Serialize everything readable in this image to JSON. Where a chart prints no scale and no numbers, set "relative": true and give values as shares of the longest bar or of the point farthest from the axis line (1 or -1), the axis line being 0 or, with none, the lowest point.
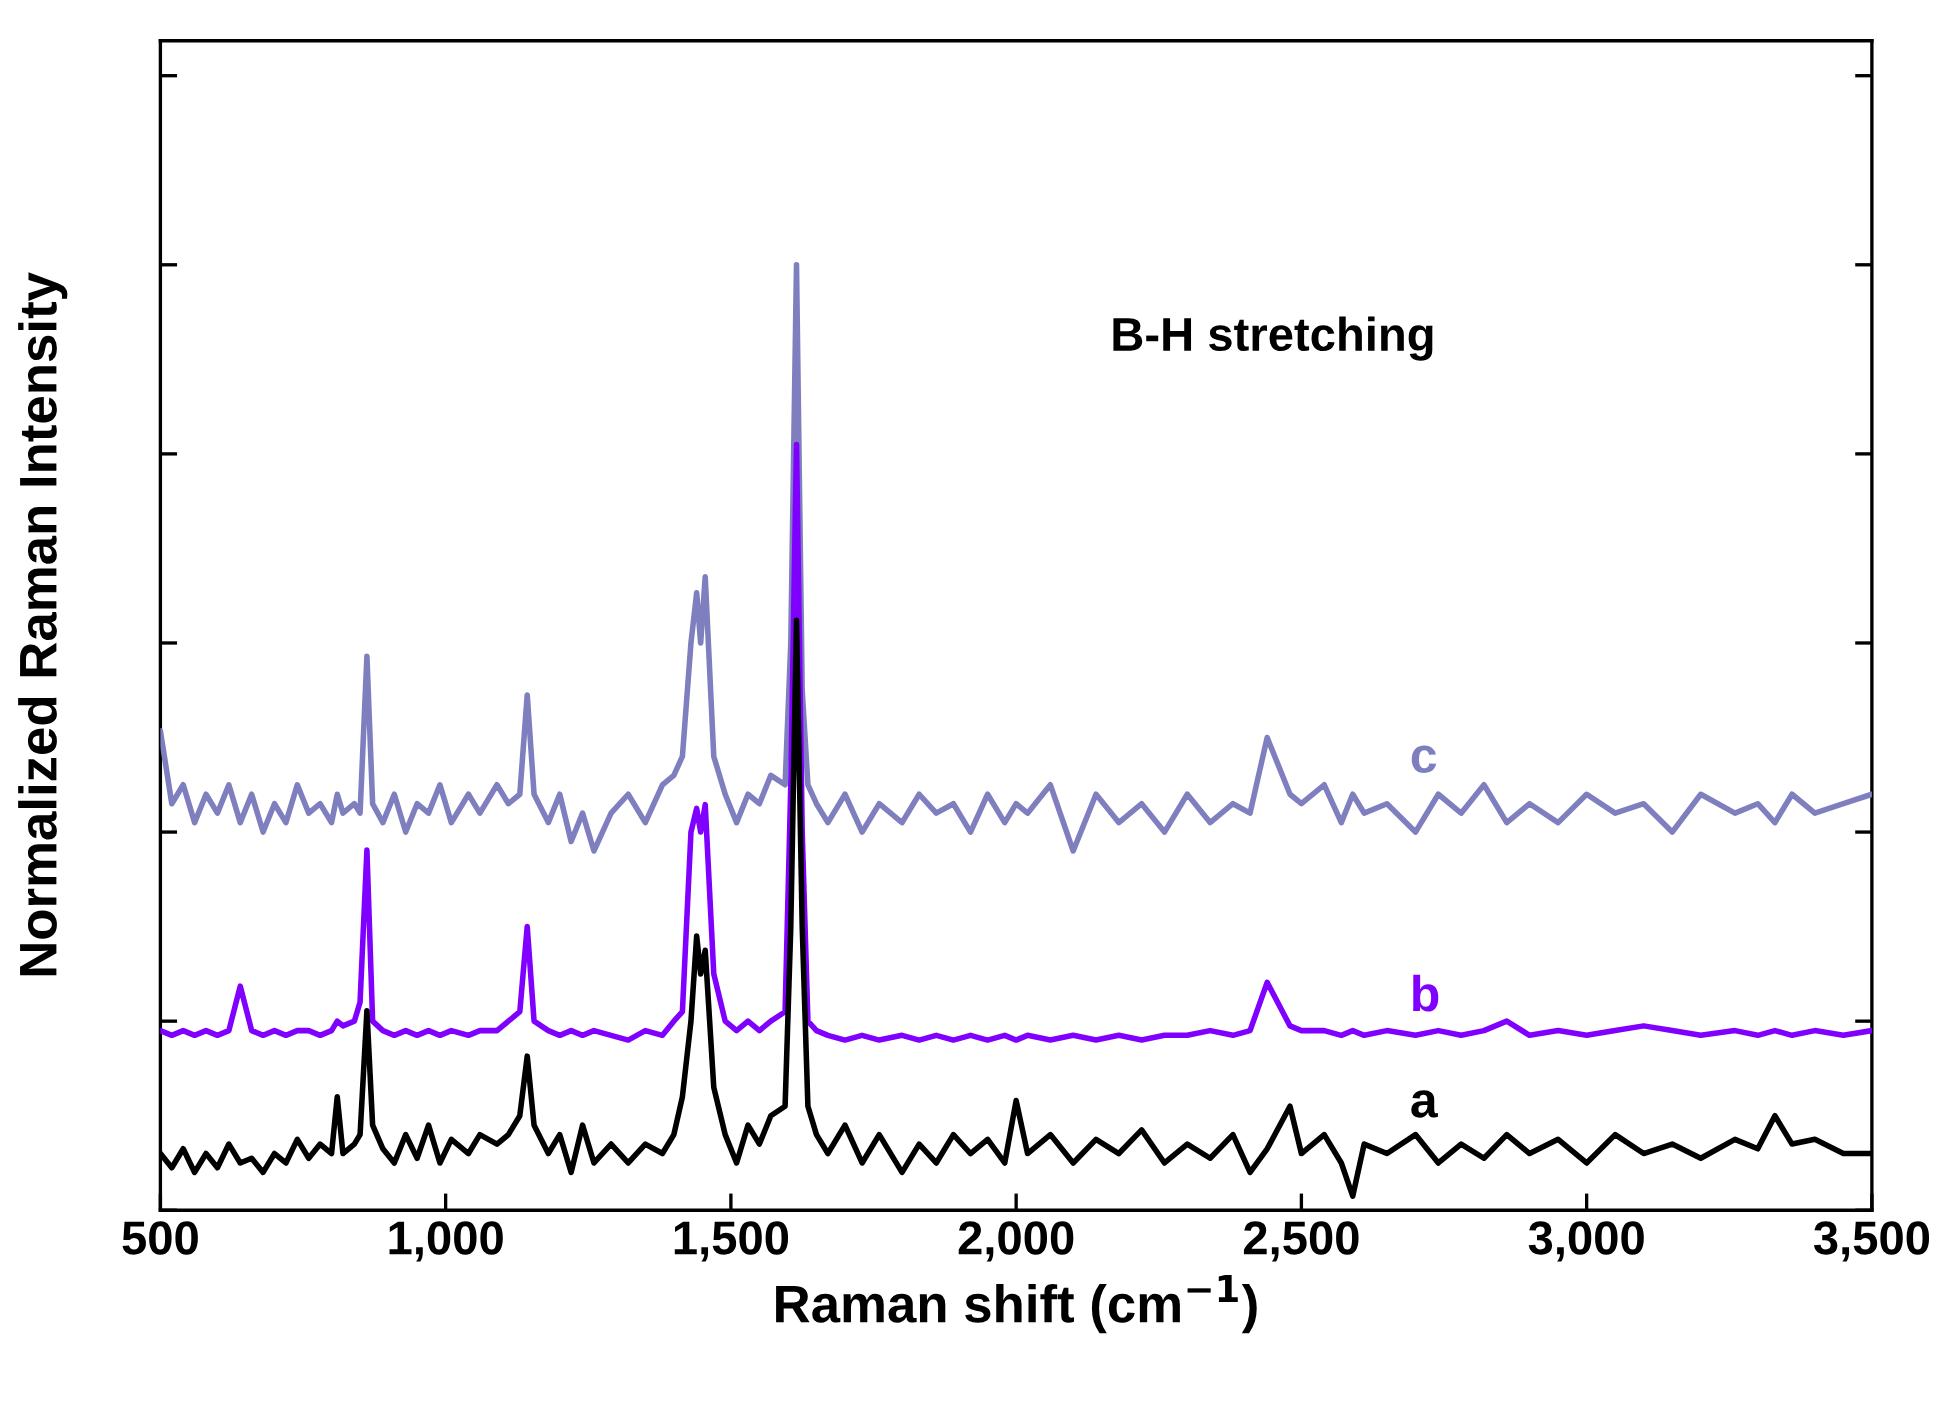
{
  "chart_data": {
    "type": "line",
    "relative": true,
    "xlabel": "Raman shift (cm$^{−1}$)",
    "ylabel": "Normalized Raman Intensity",
    "annotations": [
      "B-H stretching"
    ],
    "xlim": [
      500,
      3500
    ],
    "xticks": [
      500,
      {
        "value": 1000,
        "label": "1,000"
      },
      {
        "value": 1500,
        "label": "1,500"
      },
      {
        "value": 2000,
        "label": "2,000"
      },
      {
        "value": 2500,
        "label": "2,500"
      },
      {
        "value": 3000,
        "label": "3,000"
      },
      {
        "value": 3500,
        "label": "3,500"
      }
    ],
    "tick_labels": "x",
    "grid": false,
    "legend": false,
    "marker": "none",
    "line_style": "solid",
    "x": [
      500,
      520,
      540,
      560,
      580,
      600,
      620,
      640,
      660,
      680,
      700,
      720,
      740,
      760,
      780,
      800,
      810,
      820,
      840,
      850,
      862,
      872,
      890,
      910,
      930,
      950,
      970,
      990,
      1010,
      1040,
      1060,
      1090,
      1110,
      1130,
      1143,
      1155,
      1180,
      1200,
      1220,
      1240,
      1260,
      1290,
      1320,
      1350,
      1380,
      1400,
      1415,
      1430,
      1440,
      1447,
      1455,
      1470,
      1490,
      1510,
      1530,
      1550,
      1570,
      1595,
      1605,
      1615,
      1625,
      1635,
      1650,
      1670,
      1700,
      1730,
      1760,
      1800,
      1830,
      1860,
      1890,
      1920,
      1950,
      1980,
      2000,
      2020,
      2060,
      2100,
      2140,
      2180,
      2220,
      2260,
      2300,
      2340,
      2380,
      2410,
      2440,
      2480,
      2500,
      2540,
      2570,
      2590,
      2610,
      2650,
      2700,
      2740,
      2780,
      2820,
      2860,
      2900,
      2950,
      3000,
      3050,
      3100,
      3150,
      3200,
      3260,
      3300,
      3330,
      3360,
      3400,
      3450,
      3500
    ],
    "series": [
      {
        "name": "a",
        "color": "#000000",
        "values": [
          0.06,
          0.045,
          0.065,
          0.04,
          0.06,
          0.045,
          0.07,
          0.05,
          0.055,
          0.04,
          0.06,
          0.05,
          0.075,
          0.055,
          0.07,
          0.06,
          0.12,
          0.06,
          0.07,
          0.08,
          0.211,
          0.09,
          0.065,
          0.05,
          0.08,
          0.055,
          0.09,
          0.05,
          0.075,
          0.06,
          0.08,
          0.07,
          0.08,
          0.1,
          0.163,
          0.09,
          0.06,
          0.08,
          0.04,
          0.09,
          0.05,
          0.07,
          0.05,
          0.07,
          0.06,
          0.08,
          0.12,
          0.2,
          0.29,
          0.25,
          0.275,
          0.13,
          0.08,
          0.05,
          0.09,
          0.07,
          0.1,
          0.11,
          0.3,
          0.624,
          0.3,
          0.11,
          0.08,
          0.06,
          0.09,
          0.05,
          0.08,
          0.04,
          0.07,
          0.05,
          0.08,
          0.06,
          0.075,
          0.05,
          0.116,
          0.06,
          0.08,
          0.05,
          0.075,
          0.06,
          0.085,
          0.05,
          0.07,
          0.055,
          0.08,
          0.04,
          0.065,
          0.11,
          0.06,
          0.08,
          0.05,
          0.015,
          0.07,
          0.06,
          0.08,
          0.05,
          0.07,
          0.055,
          0.08,
          0.06,
          0.075,
          0.05,
          0.08,
          0.06,
          0.07,
          0.055,
          0.075,
          0.065,
          0.1,
          0.07,
          0.075,
          0.06,
          0.06
        ]
      },
      {
        "name": "b",
        "color": "#8000ff",
        "values": [
          0.19,
          0.185,
          0.19,
          0.185,
          0.19,
          0.185,
          0.19,
          0.237,
          0.19,
          0.185,
          0.19,
          0.185,
          0.19,
          0.19,
          0.185,
          0.19,
          0.2,
          0.195,
          0.2,
          0.22,
          0.381,
          0.2,
          0.19,
          0.185,
          0.19,
          0.185,
          0.19,
          0.185,
          0.19,
          0.185,
          0.19,
          0.19,
          0.2,
          0.21,
          0.3,
          0.2,
          0.19,
          0.185,
          0.19,
          0.185,
          0.19,
          0.185,
          0.18,
          0.19,
          0.185,
          0.2,
          0.21,
          0.4,
          0.425,
          0.4,
          0.429,
          0.25,
          0.2,
          0.19,
          0.2,
          0.19,
          0.2,
          0.21,
          0.45,
          0.81,
          0.4,
          0.2,
          0.19,
          0.185,
          0.18,
          0.185,
          0.18,
          0.185,
          0.18,
          0.185,
          0.18,
          0.185,
          0.18,
          0.185,
          0.18,
          0.185,
          0.18,
          0.185,
          0.18,
          0.185,
          0.18,
          0.185,
          0.185,
          0.19,
          0.185,
          0.19,
          0.241,
          0.195,
          0.19,
          0.19,
          0.185,
          0.19,
          0.185,
          0.19,
          0.185,
          0.19,
          0.185,
          0.19,
          0.2,
          0.185,
          0.19,
          0.185,
          0.19,
          0.195,
          0.19,
          0.185,
          0.19,
          0.185,
          0.19,
          0.185,
          0.19,
          0.185,
          0.19
        ]
      },
      {
        "name": "c",
        "color": "#7f7fbf",
        "values": [
          0.507,
          0.43,
          0.45,
          0.41,
          0.44,
          0.42,
          0.45,
          0.41,
          0.44,
          0.4,
          0.43,
          0.41,
          0.45,
          0.42,
          0.43,
          0.41,
          0.44,
          0.42,
          0.43,
          0.42,
          0.586,
          0.43,
          0.41,
          0.44,
          0.4,
          0.43,
          0.42,
          0.45,
          0.41,
          0.44,
          0.42,
          0.45,
          0.43,
          0.44,
          0.545,
          0.44,
          0.41,
          0.44,
          0.39,
          0.42,
          0.38,
          0.42,
          0.44,
          0.41,
          0.45,
          0.46,
          0.48,
          0.6,
          0.653,
          0.6,
          0.67,
          0.48,
          0.44,
          0.41,
          0.44,
          0.43,
          0.46,
          0.45,
          0.6,
          1.0,
          0.55,
          0.45,
          0.43,
          0.41,
          0.44,
          0.4,
          0.43,
          0.41,
          0.44,
          0.42,
          0.43,
          0.4,
          0.44,
          0.41,
          0.43,
          0.42,
          0.45,
          0.38,
          0.44,
          0.41,
          0.43,
          0.4,
          0.44,
          0.41,
          0.43,
          0.42,
          0.5,
          0.44,
          0.43,
          0.45,
          0.41,
          0.44,
          0.42,
          0.43,
          0.4,
          0.44,
          0.42,
          0.45,
          0.41,
          0.43,
          0.41,
          0.44,
          0.42,
          0.43,
          0.4,
          0.44,
          0.42,
          0.43,
          0.41,
          0.44,
          0.42,
          0.43,
          0.44
        ]
      }
    ]
  }
}
